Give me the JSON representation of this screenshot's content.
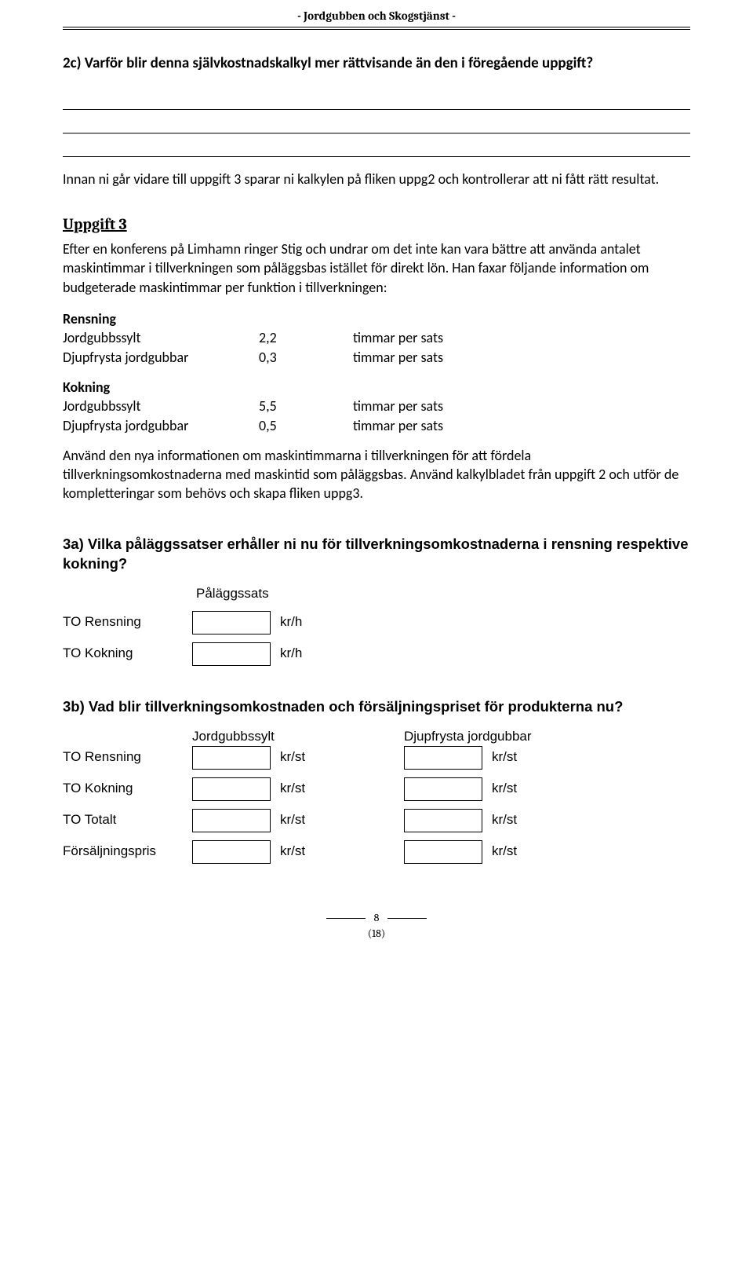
{
  "header": {
    "title": "- Jordgubben och Skogstjänst -"
  },
  "q2c": {
    "heading": "2c) Varför blir denna självkostnadskalkyl mer rättvisande än den i föregående uppgift?"
  },
  "intro_note": "Innan ni går vidare till uppgift 3 sparar ni kalkylen på fliken uppg2 och kontrollerar att ni fått rätt resultat.",
  "uppgift3": {
    "title": "Uppgift 3",
    "body_pre": "Efter en konferens på Limhamn ringer Stig och undrar om det inte kan vara bättre att använda antalet maskintimmar i tillverkningen som påläggsbas istället för direkt lön. Han faxar följande information om budgeterade maskintimmar per funktion i tillverkningen:",
    "rensning": {
      "label": "Rensning",
      "rows": [
        {
          "name": "Jordgubbssylt",
          "val": "2,2",
          "unit": "timmar per sats"
        },
        {
          "name": "Djupfrysta jordgubbar",
          "val": "0,3",
          "unit": "timmar per sats"
        }
      ]
    },
    "kokning": {
      "label": "Kokning",
      "rows": [
        {
          "name": "Jordgubbssylt",
          "val": "5,5",
          "unit": "timmar per sats"
        },
        {
          "name": "Djupfrysta jordgubbar",
          "val": "0,5",
          "unit": "timmar per sats"
        }
      ]
    },
    "body_post": "Använd den nya informationen om maskintimmarna i tillverkningen för att fördela tillverkningsomkostnaderna med maskintid som påläggsbas. Använd kalkylbladet från uppgift 2 och utför de kompletteringar som behövs och skapa fliken uppg3."
  },
  "q3a": {
    "heading": "3a) Vilka påläggssatser erhåller ni nu för tillverkningsomkostnaderna i rensning respektive kokning?",
    "palaggssats": "Påläggssats",
    "rows": [
      {
        "label": "TO Rensning",
        "unit": "kr/h"
      },
      {
        "label": "TO Kokning",
        "unit": "kr/h"
      }
    ]
  },
  "q3b": {
    "heading": "3b) Vad blir tillverkningsomkostnaden och försäljningspriset för produkterna nu?",
    "colA": "Jordgubbssylt",
    "colB": "Djupfrysta jordgubbar",
    "rows": [
      {
        "label": "TO Rensning",
        "unit": "kr/st"
      },
      {
        "label": "TO Kokning",
        "unit": "kr/st"
      },
      {
        "label": "TO Totalt",
        "unit": "kr/st"
      },
      {
        "label": "Försäljningspris",
        "unit": "kr/st"
      }
    ]
  },
  "footer": {
    "page": "8",
    "total": "(18)"
  }
}
